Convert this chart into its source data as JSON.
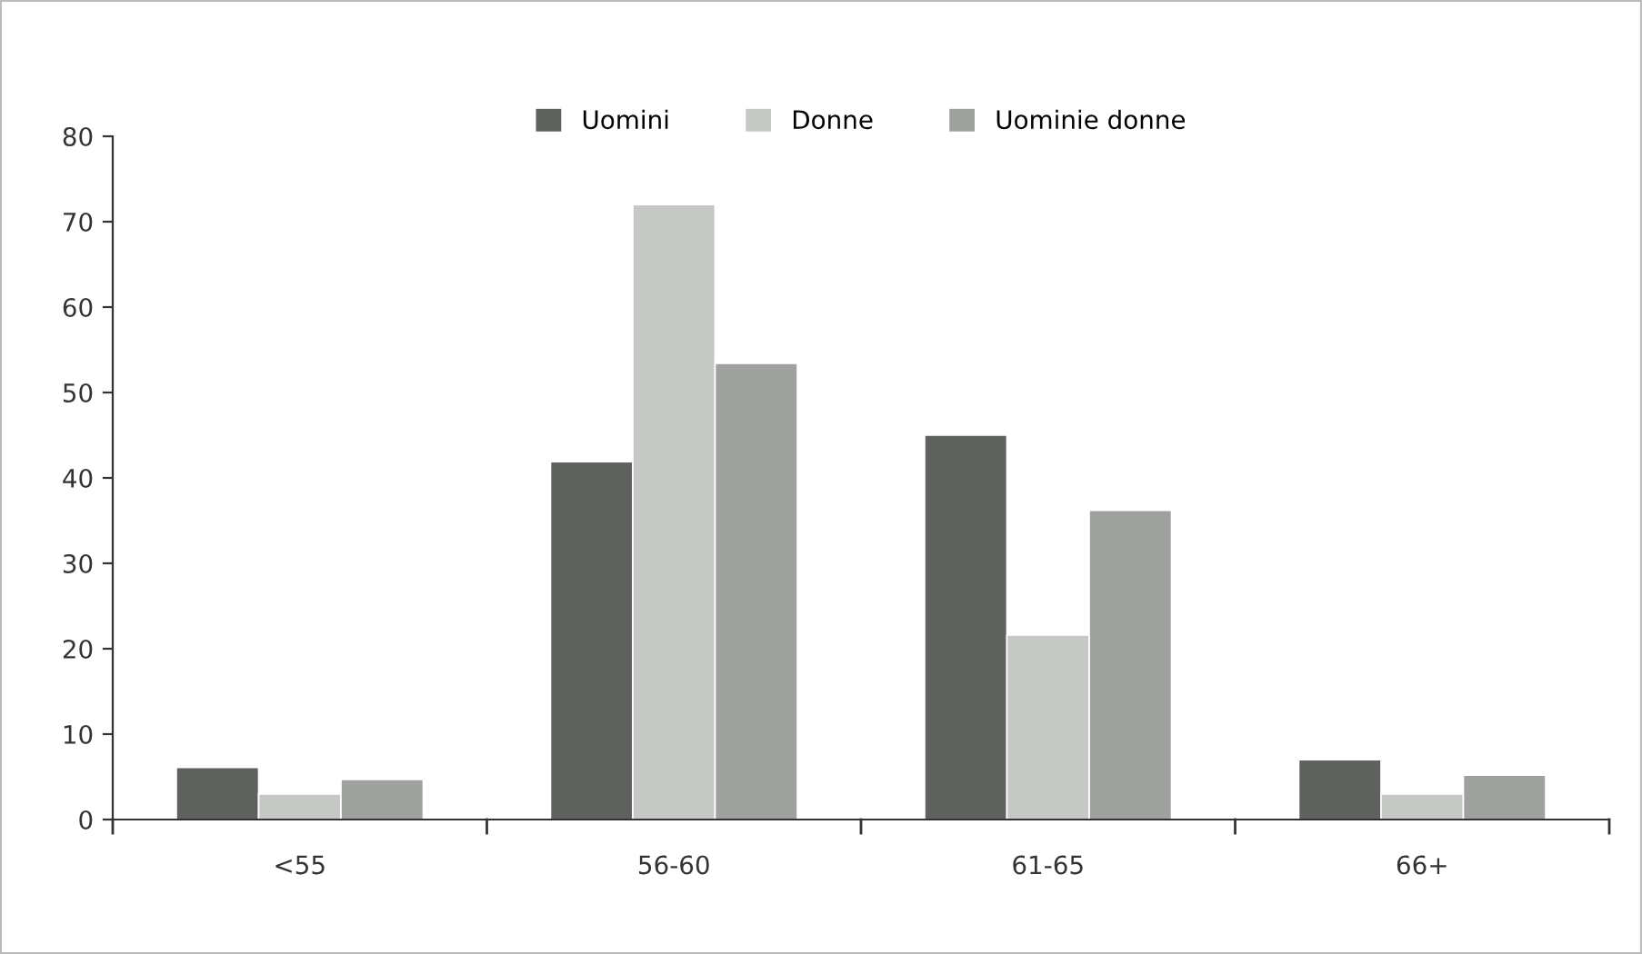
{
  "chart_data": {
    "type": "bar",
    "categories": [
      "<55",
      "56-60",
      "61-65",
      "66+"
    ],
    "series": [
      {
        "name": "Uomini",
        "color": "#5f615f",
        "values": [
          6.1,
          41.9,
          45.0,
          7.0
        ]
      },
      {
        "name": "Donne",
        "color": "#c6c8c6",
        "values": [
          3.0,
          72.0,
          21.6,
          3.0
        ]
      },
      {
        "name": "Uominie donne",
        "color": "#9fa19f",
        "values": [
          4.7,
          53.4,
          36.2,
          5.2
        ]
      }
    ],
    "ylim": [
      0,
      80
    ],
    "yticks": [
      0,
      10,
      20,
      30,
      40,
      50,
      60,
      70,
      80
    ],
    "grid": false,
    "legend": "top"
  }
}
